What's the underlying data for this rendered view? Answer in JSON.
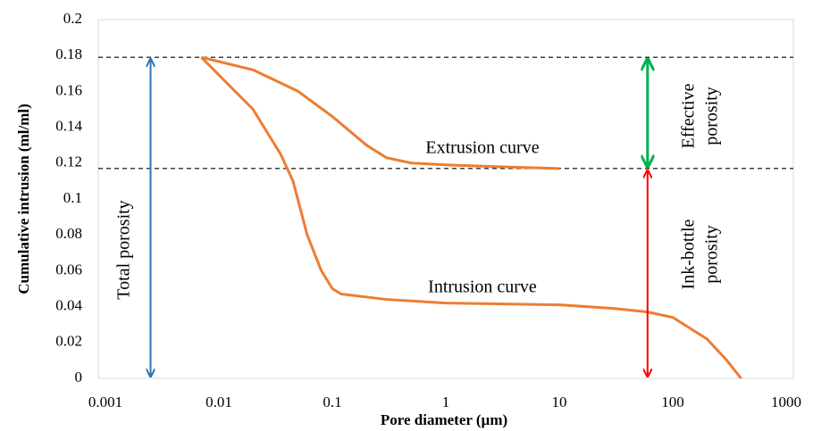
{
  "chart_data": {
    "type": "line",
    "xlabel": "Pore diameter (µm)",
    "ylabel": "Cumulative intrusion (ml/ml)",
    "log_x": true,
    "xlim": [
      0.001,
      1000
    ],
    "xticks": [
      0.001,
      0.01,
      0.1,
      1,
      10,
      100,
      1000
    ],
    "ylim": [
      0,
      0.2
    ],
    "yticks": [
      0,
      0.02,
      0.04,
      0.06,
      0.08,
      0.1,
      0.12,
      0.14,
      0.16,
      0.18,
      0.2
    ],
    "grid": false,
    "series": [
      {
        "name": "Intrusion curve",
        "color": "#ed7d31",
        "x": [
          0.007,
          0.02,
          0.035,
          0.045,
          0.06,
          0.08,
          0.1,
          0.12,
          0.3,
          1,
          10,
          30,
          60,
          100,
          200,
          300,
          400
        ],
        "values": [
          0.179,
          0.15,
          0.125,
          0.11,
          0.08,
          0.06,
          0.05,
          0.047,
          0.044,
          0.042,
          0.041,
          0.039,
          0.037,
          0.034,
          0.022,
          0.01,
          0
        ]
      },
      {
        "name": "Extrusion curve",
        "color": "#ed7d31",
        "x": [
          0.007,
          0.02,
          0.05,
          0.1,
          0.2,
          0.3,
          0.5,
          1,
          3,
          10
        ],
        "values": [
          0.179,
          0.172,
          0.16,
          0.146,
          0.13,
          0.123,
          0.12,
          0.119,
          0.118,
          0.117
        ]
      }
    ],
    "reference_lines": [
      0.179,
      0.117
    ],
    "annotations": [
      {
        "lines": [
          "Total porosity"
        ],
        "color": "#2e75b6",
        "x": 0.0025,
        "y": [
          0,
          0.179
        ]
      },
      {
        "lines": [
          "Effective",
          "porosity"
        ],
        "color": "#00b050",
        "x": 60,
        "y": [
          0.117,
          0.179
        ]
      },
      {
        "lines": [
          "Ink-bottle",
          "porosity"
        ],
        "color": "#ff0000",
        "x": 60,
        "y": [
          0,
          0.117
        ]
      }
    ]
  }
}
